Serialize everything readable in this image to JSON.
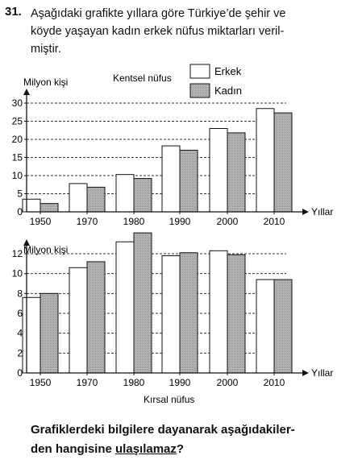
{
  "question": {
    "number": "31.",
    "lines": [
      "Aşağıdaki grafikte yıllara göre Türkiye’de şehir ve",
      "köyde yaşayan kadın erkek nüfus miktarları veril-",
      "miştir."
    ],
    "bottom_lines": [
      "Grafiklerdeki bilgilere dayanarak aşağıdakiler-"
    ],
    "bottom_prefix": "den hangisine ",
    "bottom_underlined": "ulaşılamaz",
    "bottom_suffix": "?"
  },
  "chart_data": [
    {
      "type": "bar",
      "title": "Kentsel nüfus",
      "ylabel": "Milyon kişi",
      "xlabel": "Yıllar",
      "categories": [
        "1950",
        "1970",
        "1980",
        "1990",
        "2000",
        "2010"
      ],
      "yticks": [
        "0",
        "5",
        "10",
        "15",
        "20",
        "25",
        "30"
      ],
      "ylim": [
        0,
        30
      ],
      "grid": true,
      "legend": "top",
      "series": [
        {
          "name": "Erkek",
          "values": [
            3.5,
            7.8,
            10.3,
            18.2,
            23.0,
            28.5
          ],
          "color": "#ffffff"
        },
        {
          "name": "Kadın",
          "values": [
            2.3,
            6.8,
            9.2,
            17.0,
            21.8,
            27.3
          ],
          "color": "#b0b0b0"
        }
      ]
    },
    {
      "type": "bar",
      "title": "Kırsal nüfus",
      "ylabel": "Milyon kişi",
      "xlabel": "Yıllar",
      "categories": [
        "1950",
        "1970",
        "1980",
        "1990",
        "2000",
        "2010"
      ],
      "yticks": [
        "0",
        "2",
        "4",
        "6",
        "8",
        "10",
        "12"
      ],
      "ylim": [
        0,
        14
      ],
      "grid": true,
      "legend": "",
      "series": [
        {
          "name": "Erkek",
          "values": [
            7.6,
            10.6,
            13.2,
            11.8,
            12.3,
            9.4
          ],
          "color": "#ffffff"
        },
        {
          "name": "Kadın",
          "values": [
            8.0,
            11.2,
            14.1,
            12.1,
            11.9,
            9.4
          ],
          "color": "#b0b0b0"
        }
      ]
    }
  ]
}
